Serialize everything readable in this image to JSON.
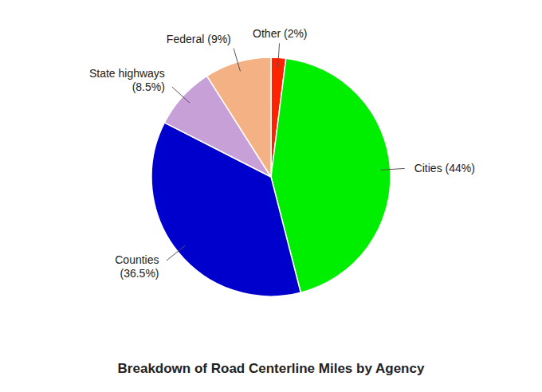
{
  "chart_data": {
    "type": "pie",
    "title": "Breakdown of Road Centerline Miles by Agency",
    "categories": [
      "Other (2%)",
      "Cities (44%)",
      "Counties\n(36.5%)",
      "State highways\n(8.5%)",
      "Federal (9%)"
    ],
    "values": [
      2.0,
      44.0,
      36.5,
      8.5,
      9.0
    ],
    "colors": [
      "#ff2200",
      "#00ee00",
      "#0000cc",
      "#c8a0d8",
      "#f4b183"
    ]
  }
}
